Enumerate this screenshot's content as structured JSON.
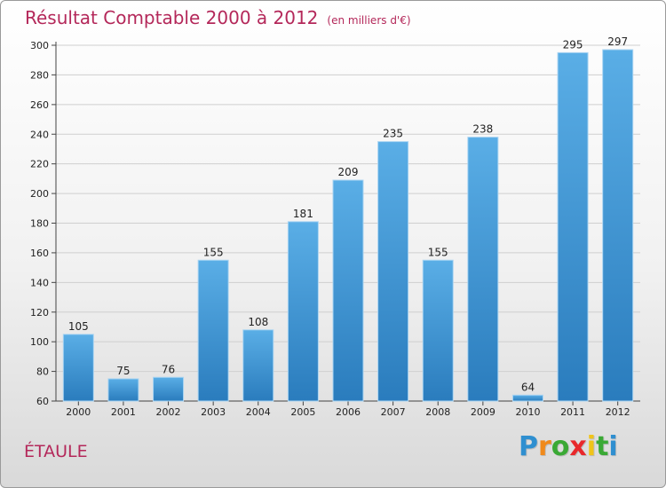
{
  "chart_data": {
    "type": "bar",
    "title": "Résultat Comptable 2000 à 2012",
    "subtitle": "(en milliers d'€)",
    "categories": [
      "2000",
      "2001",
      "2002",
      "2003",
      "2004",
      "2005",
      "2006",
      "2007",
      "2008",
      "2009",
      "2010",
      "2011",
      "2012"
    ],
    "values": [
      105,
      75,
      76,
      155,
      108,
      181,
      209,
      235,
      155,
      238,
      64,
      295,
      297
    ],
    "ylim": [
      60,
      300
    ],
    "yticks": [
      60,
      80,
      100,
      120,
      140,
      160,
      180,
      200,
      220,
      240,
      260,
      280,
      300
    ],
    "xlabel": "",
    "ylabel": "",
    "bar_color_top": "#5aaee6",
    "bar_color_bottom": "#2a7cbd",
    "grid": true
  },
  "location": "ÉTAULE",
  "brand": {
    "letters": [
      "P",
      "r",
      "o",
      "x",
      "i",
      "t",
      "i"
    ],
    "colors": [
      "#2f8fd0",
      "#f08a1c",
      "#3aa935",
      "#e8282b",
      "#f0c419",
      "#3aa935",
      "#2f8fd0"
    ]
  },
  "colors": {
    "title": "#b4285a",
    "grid": "#cfcfcf"
  }
}
